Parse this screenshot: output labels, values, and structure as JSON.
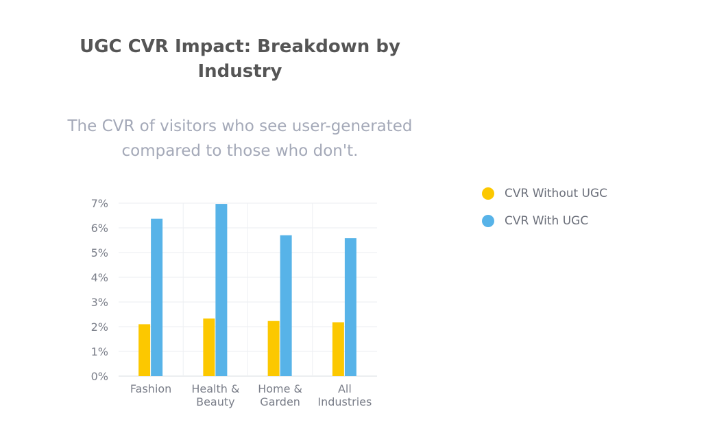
{
  "chart_data": {
    "type": "bar",
    "title": "UGC CVR Impact: Breakdown by Industry",
    "subtitle": "The CVR of visitors who see user-generated compared to those who don't.",
    "categories": [
      [
        "Fashion"
      ],
      [
        "Health &",
        "Beauty"
      ],
      [
        "Home &",
        "Garden"
      ],
      [
        "All",
        "Industries"
      ]
    ],
    "series": [
      {
        "name": "CVR Without UGC",
        "color": "#fcc800",
        "values": [
          2.1,
          2.33,
          2.23,
          2.18
        ]
      },
      {
        "name": "CVR With UGC",
        "color": "#57b3e8",
        "values": [
          6.37,
          6.97,
          5.7,
          5.58
        ]
      }
    ],
    "yticks": [
      "0%",
      "1%",
      "2%",
      "3%",
      "4%",
      "5%",
      "6%",
      "7%"
    ],
    "ylim": [
      0,
      7
    ],
    "legend_position": "right",
    "grid": true
  }
}
